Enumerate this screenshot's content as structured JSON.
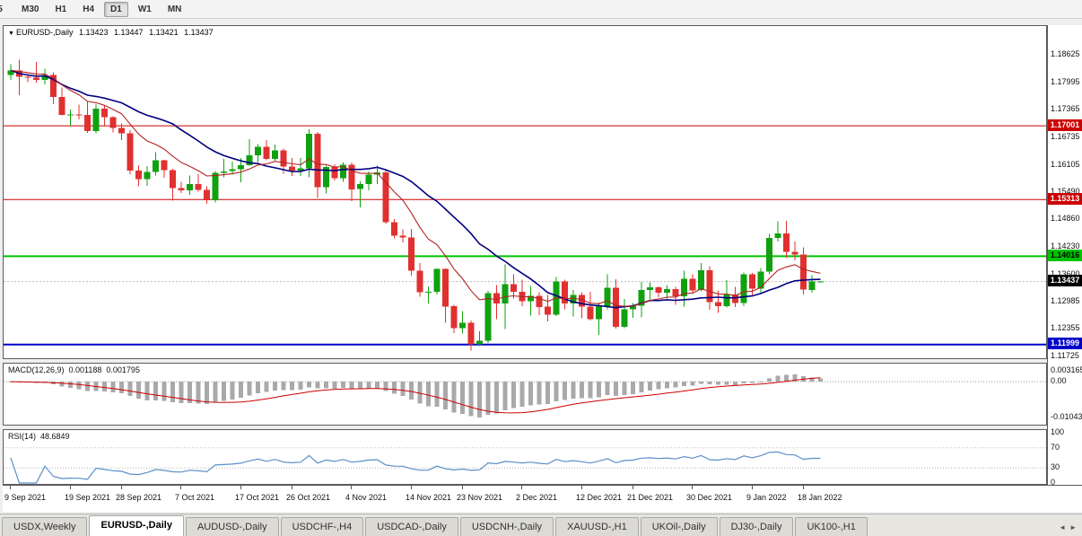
{
  "toolbar": {
    "timeframes": [
      "5",
      "M30",
      "H1",
      "H4",
      "D1",
      "W1",
      "MN"
    ],
    "active_timeframe": "D1"
  },
  "icons": {
    "chart_marker": "▼",
    "tab_scroll_left": "◄",
    "tab_scroll_right": "►"
  },
  "chart": {
    "symbol": "EURUSD-,Daily",
    "ohlc": {
      "open": "1.13423",
      "high": "1.13447",
      "low": "1.13421",
      "close": "1.13437"
    }
  },
  "panels": {
    "macd": {
      "name": "MACD(12,26,9)",
      "value_main": "0.001188",
      "value_signal": "0.001795"
    },
    "rsi": {
      "name": "RSI(14)",
      "value": "48.6849"
    }
  },
  "tabs": [
    {
      "label": "USDX,Weekly",
      "active": false
    },
    {
      "label": "EURUSD-,Daily",
      "active": true
    },
    {
      "label": "AUDUSD-,Daily",
      "active": false
    },
    {
      "label": "USDCHF-,H4",
      "active": false
    },
    {
      "label": "USDCAD-,Daily",
      "active": false
    },
    {
      "label": "USDCNH-,Daily",
      "active": false
    },
    {
      "label": "XAUUSD-,H1",
      "active": false
    },
    {
      "label": "UKOil-,Daily",
      "active": false
    },
    {
      "label": "DJ30-,Daily",
      "active": false
    },
    {
      "label": "UK100-,H1",
      "active": false
    }
  ],
  "chart_data": {
    "type": "candlestick",
    "symbol": "EURUSD",
    "timeframe": "Daily",
    "candle_colors": {
      "bull": "#10a010",
      "bear": "#e03030"
    },
    "price_axis": {
      "labels": [
        "1.18625",
        "1.17995",
        "1.17365",
        "1.16735",
        "1.16105",
        "1.15490",
        "1.14860",
        "1.14230",
        "1.13600",
        "1.12985",
        "1.12355",
        "1.11725"
      ]
    },
    "time_axis": {
      "labels": [
        {
          "text": "9 Sep 2021",
          "bar": 0
        },
        {
          "text": "19 Sep 2021",
          "bar": 7
        },
        {
          "text": "28 Sep 2021",
          "bar": 13
        },
        {
          "text": "7 Oct 2021",
          "bar": 20
        },
        {
          "text": "17 Oct 2021",
          "bar": 27
        },
        {
          "text": "26 Oct 2021",
          "bar": 33
        },
        {
          "text": "4 Nov 2021",
          "bar": 40
        },
        {
          "text": "14 Nov 2021",
          "bar": 47
        },
        {
          "text": "23 Nov 2021",
          "bar": 53
        },
        {
          "text": "2 Dec 2021",
          "bar": 60
        },
        {
          "text": "12 Dec 2021",
          "bar": 67
        },
        {
          "text": "21 Dec 2021",
          "bar": 73
        },
        {
          "text": "30 Dec 2021",
          "bar": 80
        },
        {
          "text": "9 Jan 2022",
          "bar": 87
        },
        {
          "text": "18 Jan 2022",
          "bar": 93
        }
      ]
    },
    "hlines": [
      {
        "value": 1.17001,
        "label": "1.17001",
        "color": "#cc0000",
        "width": 1,
        "text_color": "#ffffff"
      },
      {
        "value": 1.15313,
        "label": "1.15313",
        "color": "#cc0000",
        "width": 1,
        "text_color": "#ffffff"
      },
      {
        "value": 1.14016,
        "label": "1.14016",
        "color": "#00c300",
        "width": 2,
        "text_color": "#000000"
      },
      {
        "value": 1.11999,
        "label": "1.11999",
        "color": "#0000cc",
        "width": 2,
        "text_color": "#ffffff"
      }
    ],
    "current_price": {
      "value": 1.13437,
      "label": "1.13437",
      "badge_color": "#000000",
      "text_color": "#ffffff"
    },
    "overlays": {
      "ma_fast": {
        "type": "ema",
        "period": 10,
        "color": "#b22222"
      },
      "ma_slow": {
        "type": "sma",
        "period": 20,
        "color": "#000080"
      }
    },
    "indicators": {
      "macd": {
        "fast": 12,
        "slow": 26,
        "signal_period": 9,
        "axis_labels": [
          "0.003165",
          "0.00",
          "-0.01043"
        ],
        "histogram_color": "#a9a9a9",
        "signal_color": "#cc0000"
      },
      "rsi": {
        "period": 14,
        "levels": [
          70,
          30
        ],
        "axis_labels": [
          "100",
          "70",
          "30",
          "0"
        ],
        "line_color": "#5c8fc9"
      }
    },
    "candles": [
      [
        1.1816,
        1.1841,
        1.1805,
        1.1827
      ],
      [
        1.1827,
        1.1851,
        1.177,
        1.1812
      ],
      [
        1.1812,
        1.1818,
        1.18,
        1.181
      ],
      [
        1.181,
        1.1846,
        1.1799,
        1.1805
      ],
      [
        1.1805,
        1.1831,
        1.1795,
        1.1816
      ],
      [
        1.1816,
        1.1822,
        1.175,
        1.1766
      ],
      [
        1.1766,
        1.1788,
        1.1724,
        1.1725
      ],
      [
        1.1725,
        1.1737,
        1.17,
        1.1726
      ],
      [
        1.1726,
        1.1749,
        1.1715,
        1.1725
      ],
      [
        1.1725,
        1.1756,
        1.1684,
        1.1688
      ],
      [
        1.1688,
        1.175,
        1.1683,
        1.1739
      ],
      [
        1.1739,
        1.1747,
        1.1701,
        1.172
      ],
      [
        1.172,
        1.1722,
        1.1685,
        1.1695
      ],
      [
        1.1695,
        1.1705,
        1.1667,
        1.1683
      ],
      [
        1.1683,
        1.169,
        1.1589,
        1.1598
      ],
      [
        1.1598,
        1.161,
        1.1562,
        1.1578
      ],
      [
        1.1578,
        1.1608,
        1.1563,
        1.1595
      ],
      [
        1.1595,
        1.164,
        1.1586,
        1.1621
      ],
      [
        1.1621,
        1.1622,
        1.1581,
        1.1599
      ],
      [
        1.1599,
        1.1602,
        1.1529,
        1.1558
      ],
      [
        1.1558,
        1.1572,
        1.1546,
        1.1552
      ],
      [
        1.1552,
        1.1586,
        1.1542,
        1.1567
      ],
      [
        1.1567,
        1.1589,
        1.1549,
        1.1553
      ],
      [
        1.1553,
        1.1562,
        1.1522,
        1.153
      ],
      [
        1.153,
        1.1597,
        1.1525,
        1.1592
      ],
      [
        1.1592,
        1.1624,
        1.1582,
        1.1596
      ],
      [
        1.1596,
        1.1618,
        1.1588,
        1.1601
      ],
      [
        1.1601,
        1.1626,
        1.1571,
        1.161
      ],
      [
        1.161,
        1.1669,
        1.1609,
        1.1633
      ],
      [
        1.1633,
        1.1658,
        1.1617,
        1.1652
      ],
      [
        1.1652,
        1.1667,
        1.1621,
        1.1624
      ],
      [
        1.1624,
        1.1657,
        1.162,
        1.1644
      ],
      [
        1.1644,
        1.1648,
        1.159,
        1.1607
      ],
      [
        1.1607,
        1.1626,
        1.1585,
        1.1598
      ],
      [
        1.1598,
        1.1626,
        1.1585,
        1.1603
      ],
      [
        1.1603,
        1.1692,
        1.1582,
        1.1682
      ],
      [
        1.1682,
        1.1686,
        1.1535,
        1.156
      ],
      [
        1.156,
        1.1609,
        1.1545,
        1.1606
      ],
      [
        1.1606,
        1.1612,
        1.1575,
        1.158
      ],
      [
        1.158,
        1.1616,
        1.1572,
        1.1611
      ],
      [
        1.1611,
        1.1616,
        1.1528,
        1.1555
      ],
      [
        1.1555,
        1.1573,
        1.1513,
        1.1567
      ],
      [
        1.1567,
        1.1596,
        1.1552,
        1.1588
      ],
      [
        1.1588,
        1.1609,
        1.1567,
        1.1593
      ],
      [
        1.1593,
        1.1598,
        1.1475,
        1.1479
      ],
      [
        1.1479,
        1.1487,
        1.1443,
        1.1449
      ],
      [
        1.1449,
        1.1463,
        1.1433,
        1.1445
      ],
      [
        1.1445,
        1.1464,
        1.1357,
        1.1369
      ],
      [
        1.1369,
        1.1386,
        1.1309,
        1.1319
      ],
      [
        1.1319,
        1.1333,
        1.1294,
        1.132
      ],
      [
        1.132,
        1.1374,
        1.1314,
        1.1373
      ],
      [
        1.1373,
        1.1374,
        1.125,
        1.1287
      ],
      [
        1.1287,
        1.1291,
        1.1226,
        1.1237
      ],
      [
        1.1237,
        1.1276,
        1.1225,
        1.125
      ],
      [
        1.125,
        1.1255,
        1.1186,
        1.12
      ],
      [
        1.12,
        1.123,
        1.1196,
        1.1208
      ],
      [
        1.1208,
        1.1322,
        1.1203,
        1.1317
      ],
      [
        1.1317,
        1.1336,
        1.1258,
        1.1294
      ],
      [
        1.1294,
        1.1383,
        1.1235,
        1.1338
      ],
      [
        1.1338,
        1.136,
        1.1305,
        1.132
      ],
      [
        1.132,
        1.1348,
        1.1288,
        1.1299
      ],
      [
        1.1299,
        1.1334,
        1.1266,
        1.1311
      ],
      [
        1.1311,
        1.1319,
        1.1267,
        1.1286
      ],
      [
        1.1286,
        1.1313,
        1.1253,
        1.1268
      ],
      [
        1.1268,
        1.1354,
        1.1265,
        1.1344
      ],
      [
        1.1344,
        1.1348,
        1.128,
        1.1294
      ],
      [
        1.1294,
        1.1324,
        1.1264,
        1.1313
      ],
      [
        1.1313,
        1.1319,
        1.126,
        1.1286
      ],
      [
        1.1286,
        1.132,
        1.1255,
        1.1258
      ],
      [
        1.1258,
        1.1296,
        1.1222,
        1.1288
      ],
      [
        1.1288,
        1.136,
        1.128,
        1.133
      ],
      [
        1.133,
        1.1349,
        1.1236,
        1.124
      ],
      [
        1.124,
        1.1304,
        1.1237,
        1.128
      ],
      [
        1.128,
        1.1295,
        1.1261,
        1.1288
      ],
      [
        1.1288,
        1.1343,
        1.1262,
        1.1324
      ],
      [
        1.1324,
        1.1342,
        1.1303,
        1.1331
      ],
      [
        1.1331,
        1.1333,
        1.1308,
        1.1318
      ],
      [
        1.1318,
        1.1336,
        1.1305,
        1.1327
      ],
      [
        1.1327,
        1.1332,
        1.1291,
        1.131
      ],
      [
        1.131,
        1.1369,
        1.1286,
        1.135
      ],
      [
        1.135,
        1.136,
        1.1316,
        1.1324
      ],
      [
        1.1324,
        1.1386,
        1.1321,
        1.137
      ],
      [
        1.137,
        1.1379,
        1.1279,
        1.1297
      ],
      [
        1.1297,
        1.1323,
        1.1272,
        1.1288
      ],
      [
        1.1288,
        1.1347,
        1.1284,
        1.1314
      ],
      [
        1.1314,
        1.1332,
        1.1285,
        1.1295
      ],
      [
        1.1295,
        1.1365,
        1.1287,
        1.136
      ],
      [
        1.136,
        1.1363,
        1.1313,
        1.1328
      ],
      [
        1.1328,
        1.1375,
        1.1314,
        1.1367
      ],
      [
        1.1367,
        1.1453,
        1.136,
        1.1444
      ],
      [
        1.1444,
        1.1482,
        1.1435,
        1.1454
      ],
      [
        1.1454,
        1.1483,
        1.1398,
        1.1412
      ],
      [
        1.1412,
        1.1435,
        1.1392,
        1.1406
      ],
      [
        1.1406,
        1.1422,
        1.1314,
        1.1325
      ],
      [
        1.1325,
        1.1358,
        1.1318,
        1.1344
      ],
      [
        1.13423,
        1.13447,
        1.13421,
        1.13437
      ]
    ]
  }
}
